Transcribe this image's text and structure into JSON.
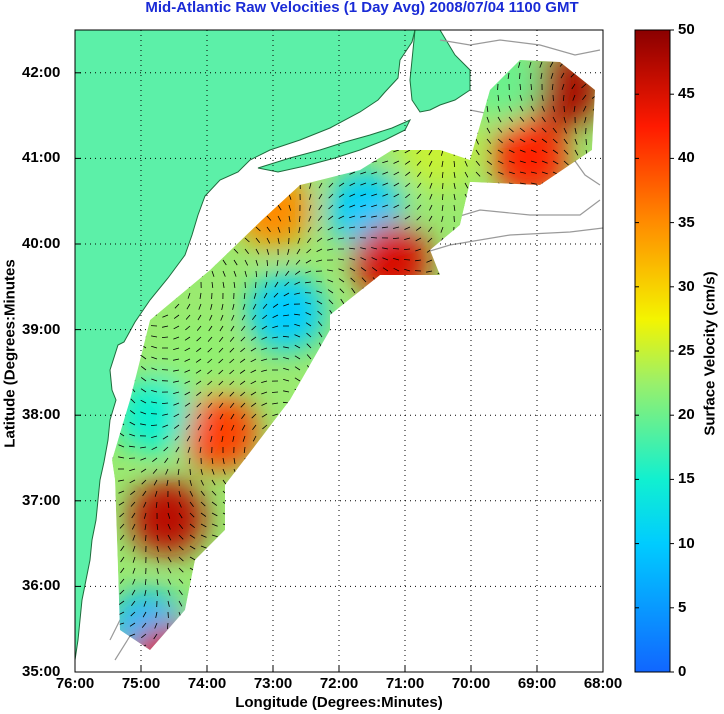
{
  "title": "Mid-Atlantic Raw Velocities (1 Day Avg) 2008/07/04 1100 GMT",
  "x_axis": {
    "label": "Longitude (Degrees:Minutes)",
    "ticks": [
      "76:00",
      "75:00",
      "74:00",
      "73:00",
      "72:00",
      "71:00",
      "70:00",
      "69:00",
      "68:00"
    ]
  },
  "y_axis": {
    "label": "Latitude (Degrees:Minutes",
    "ticks": [
      "35:00",
      "36:00",
      "37:00",
      "38:00",
      "39:00",
      "40:00",
      "41:00",
      "42:00"
    ]
  },
  "colorbar": {
    "label": "Surface Velocity (cm/s)",
    "ticks": [
      "0",
      "5",
      "10",
      "15",
      "20",
      "25",
      "30",
      "35",
      "40",
      "45",
      "50"
    ],
    "range": [
      0,
      50
    ]
  },
  "colors": {
    "land": "#5cf0a8",
    "title": "#1a2bd6",
    "coast": "#1e6b3c",
    "bathy": "#9a9a9a"
  },
  "chart_data": {
    "type": "heatmap",
    "title": "Mid-Atlantic Raw Velocities (1 Day Avg) 2008/07/04 1100 GMT",
    "xlabel": "Longitude (Degrees:Minutes)",
    "ylabel": "Latitude (Degrees:Minutes",
    "xlim": [
      -76,
      -68
    ],
    "ylim": [
      35,
      42.5
    ],
    "clim": [
      0,
      50
    ],
    "zones": [
      {
        "lon": -68.6,
        "lat": 41.8,
        "speed": 48
      },
      {
        "lon": -69.1,
        "lat": 41.0,
        "speed": 42
      },
      {
        "lon": -69.5,
        "lat": 41.9,
        "speed": 20
      },
      {
        "lon": -70.5,
        "lat": 41.1,
        "speed": 25
      },
      {
        "lon": -71.6,
        "lat": 40.4,
        "speed": 10
      },
      {
        "lon": -71.2,
        "lat": 39.8,
        "speed": 45
      },
      {
        "lon": -72.8,
        "lat": 39.2,
        "speed": 10
      },
      {
        "lon": -73.0,
        "lat": 40.4,
        "speed": 35
      },
      {
        "lon": -74.2,
        "lat": 38.7,
        "speed": 22
      },
      {
        "lon": -73.8,
        "lat": 37.8,
        "speed": 40
      },
      {
        "lon": -74.8,
        "lat": 38.0,
        "speed": 15
      },
      {
        "lon": -74.6,
        "lat": 36.8,
        "speed": 47
      },
      {
        "lon": -74.9,
        "lat": 35.5,
        "speed": 8
      },
      {
        "lon": -74.6,
        "lat": 35.1,
        "speed": 45
      }
    ]
  }
}
